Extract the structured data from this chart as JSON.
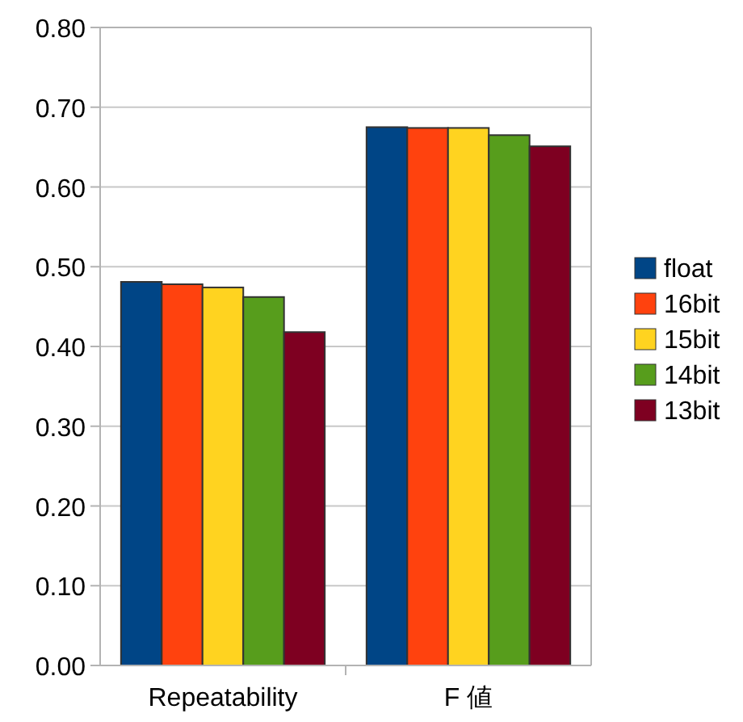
{
  "chart_data": {
    "type": "bar",
    "categories": [
      "Repeatability",
      "F 値"
    ],
    "series": [
      {
        "name": "float",
        "color": "#004586",
        "values": [
          0.481,
          0.675
        ]
      },
      {
        "name": "16bit",
        "color": "#ff420e",
        "values": [
          0.478,
          0.674
        ]
      },
      {
        "name": "15bit",
        "color": "#ffd320",
        "values": [
          0.474,
          0.674
        ]
      },
      {
        "name": "14bit",
        "color": "#579d1c",
        "values": [
          0.462,
          0.665
        ]
      },
      {
        "name": "13bit",
        "color": "#7e0021",
        "values": [
          0.418,
          0.651
        ]
      }
    ],
    "ylim": [
      0,
      0.8
    ],
    "yticks": [
      {
        "value": 0,
        "label": "0.00"
      },
      {
        "value": 0.1,
        "label": "0.10"
      },
      {
        "value": 0.2,
        "label": "0.20"
      },
      {
        "value": 0.3,
        "label": "0.30"
      },
      {
        "value": 0.4,
        "label": "0.40"
      },
      {
        "value": 0.5,
        "label": "0.50"
      },
      {
        "value": 0.6,
        "label": "0.60"
      },
      {
        "value": 0.7,
        "label": "0.70"
      },
      {
        "value": 0.8,
        "label": "0.80"
      }
    ],
    "grid": "y",
    "legend": "right"
  }
}
